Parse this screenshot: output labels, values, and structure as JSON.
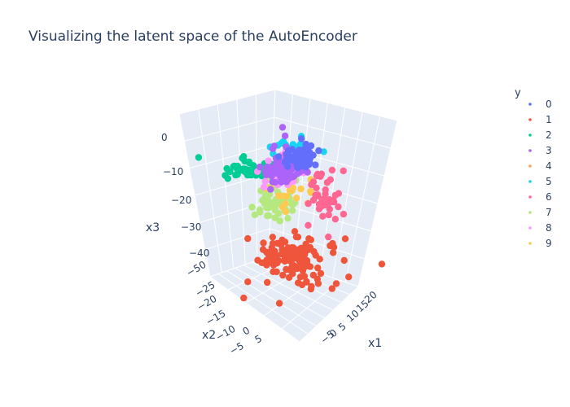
{
  "chart_data": {
    "type": "scatter",
    "subtype": "3d",
    "title": "Visualizing the latent space of the AutoEncoder",
    "xlabel": "x1",
    "ylabel": "x2",
    "zlabel": "x3",
    "x_ticks": [
      "20",
      "15",
      "10",
      "5",
      "0",
      "−5"
    ],
    "y_ticks": [
      "−25",
      "−20",
      "−15",
      "−10",
      "−5",
      "0",
      "5"
    ],
    "z_ticks": [
      "0",
      "−10",
      "−20",
      "−30",
      "−40",
      "−50"
    ],
    "legend_title": "y",
    "legend_placement": "right",
    "series": [
      {
        "name": "0",
        "color": "#636efa"
      },
      {
        "name": "1",
        "color": "#EF553B"
      },
      {
        "name": "2",
        "color": "#00cc96"
      },
      {
        "name": "3",
        "color": "#ab63fa"
      },
      {
        "name": "4",
        "color": "#FFA15A"
      },
      {
        "name": "5",
        "color": "#19d3f3"
      },
      {
        "name": "6",
        "color": "#FF6692"
      },
      {
        "name": "7",
        "color": "#B6E880"
      },
      {
        "name": "8",
        "color": "#FF97FF"
      },
      {
        "name": "9",
        "color": "#FECB52"
      }
    ]
  }
}
